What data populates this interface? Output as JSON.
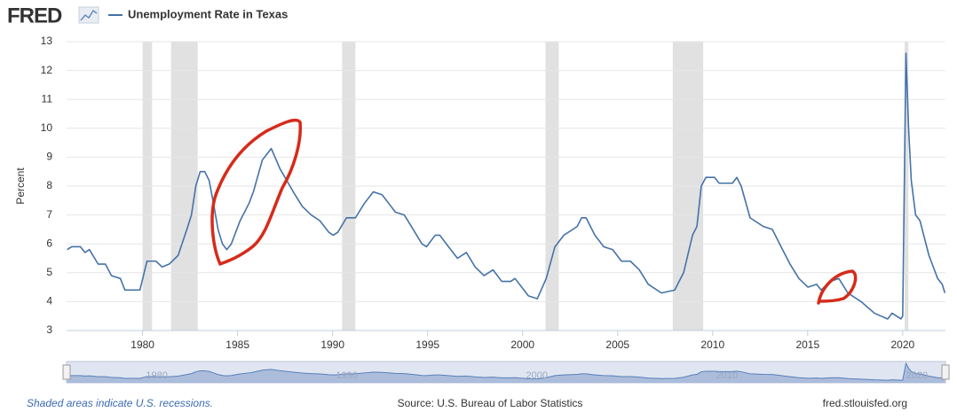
{
  "chart_data": {
    "type": "line",
    "brand": "FRED",
    "ylabel": "Percent",
    "note": "Shaded areas indicate U.S. recessions.",
    "source": "Source: U.S. Bureau of Labor Statistics",
    "site": "fred.stlouisfed.org",
    "xlim": [
      1976,
      2022.25
    ],
    "ylim": [
      3,
      13
    ],
    "xticks": [
      1980,
      1985,
      1990,
      1995,
      2000,
      2005,
      2010,
      2015,
      2020
    ],
    "yticks": [
      3,
      4,
      5,
      6,
      7,
      8,
      9,
      10,
      11,
      12,
      13
    ],
    "grid": true,
    "navigator_ticks": [
      1980,
      1990,
      2000,
      2010,
      2020
    ],
    "recessions": [
      [
        1980.0,
        1980.5
      ],
      [
        1981.5,
        1982.9
      ],
      [
        1990.5,
        1991.2
      ],
      [
        2001.2,
        2001.9
      ],
      [
        2007.9,
        2009.5
      ],
      [
        2020.1,
        2020.3
      ]
    ],
    "recession_color": "#e1e1e1",
    "x": [
      1976.03,
      1976.27,
      1976.73,
      1976.97,
      1977.2,
      1977.66,
      1978.04,
      1978.36,
      1978.83,
      1979.07,
      1979.86,
      1980.23,
      1980.7,
      1981.03,
      1981.4,
      1981.87,
      1982.33,
      1982.57,
      1982.8,
      1983.03,
      1983.27,
      1983.5,
      1983.73,
      1983.97,
      1984.2,
      1984.43,
      1984.67,
      1985.13,
      1985.6,
      1985.83,
      1986.3,
      1986.77,
      1987.23,
      1987.93,
      1988.4,
      1988.87,
      1989.33,
      1989.8,
      1990.03,
      1990.27,
      1990.73,
      1991.2,
      1991.67,
      1992.14,
      1992.6,
      1993.07,
      1993.3,
      1993.77,
      1994.24,
      1994.7,
      1994.94,
      1995.4,
      1995.64,
      1996.1,
      1996.57,
      1997.04,
      1997.5,
      1997.97,
      1998.44,
      1998.9,
      1999.37,
      1999.6,
      2000.07,
      2000.3,
      2000.77,
      2001.24,
      2001.7,
      2002.17,
      2002.87,
      2003.1,
      2003.34,
      2003.8,
      2004.27,
      2004.74,
      2005.2,
      2005.67,
      2006.14,
      2006.61,
      2007.3,
      2008.0,
      2008.47,
      2008.94,
      2009.17,
      2009.4,
      2009.64,
      2010.1,
      2010.34,
      2011.04,
      2011.27,
      2011.5,
      2011.97,
      2012.67,
      2013.14,
      2013.6,
      2014.07,
      2014.54,
      2015.01,
      2015.47,
      2015.71,
      2016.17,
      2016.64,
      2017.11,
      2017.81,
      2018.51,
      2019.21,
      2019.44,
      2019.91,
      2020.0,
      2020.17,
      2020.31,
      2020.45,
      2020.68,
      2020.91,
      2021.38,
      2021.61,
      2021.84,
      2022.08,
      2022.22
    ],
    "series": [
      {
        "name": "Unemployment Rate in Texas",
        "color": "#4572a7",
        "values": [
          5.8,
          5.9,
          5.9,
          5.7,
          5.8,
          5.3,
          5.3,
          4.9,
          4.8,
          4.4,
          4.4,
          5.4,
          5.4,
          5.2,
          5.3,
          5.6,
          6.5,
          7.0,
          8.0,
          8.5,
          8.5,
          8.2,
          7.4,
          6.5,
          6.0,
          5.8,
          6.0,
          6.8,
          7.4,
          7.8,
          8.9,
          9.3,
          8.6,
          7.8,
          7.3,
          7.0,
          6.8,
          6.4,
          6.3,
          6.4,
          6.9,
          6.9,
          7.4,
          7.8,
          7.7,
          7.3,
          7.1,
          7.0,
          6.5,
          6.0,
          5.9,
          6.3,
          6.3,
          5.9,
          5.5,
          5.7,
          5.2,
          4.9,
          5.1,
          4.7,
          4.7,
          4.8,
          4.4,
          4.2,
          4.1,
          4.8,
          5.9,
          6.3,
          6.6,
          6.9,
          6.9,
          6.3,
          5.9,
          5.8,
          5.4,
          5.4,
          5.1,
          4.6,
          4.3,
          4.4,
          5.0,
          6.3,
          6.6,
          8.0,
          8.3,
          8.3,
          8.1,
          8.1,
          8.3,
          8.0,
          6.9,
          6.6,
          6.5,
          5.9,
          5.3,
          4.8,
          4.5,
          4.6,
          4.4,
          4.7,
          4.8,
          4.3,
          4.0,
          3.6,
          3.4,
          3.6,
          3.4,
          3.5,
          12.6,
          10.0,
          8.2,
          7.0,
          6.8,
          5.6,
          5.2,
          4.8,
          4.6,
          4.3
        ]
      }
    ]
  }
}
